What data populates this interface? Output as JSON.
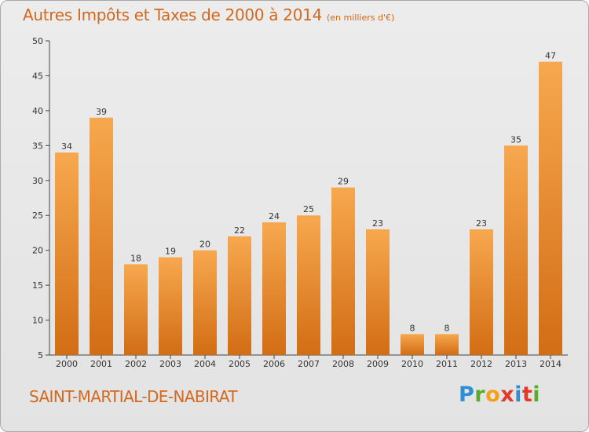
{
  "header": {
    "title": "Autres Impôts et Taxes de 2000 à 2014",
    "subtitle": "(en milliers d'€)"
  },
  "footer": {
    "commune": "SAINT-MARTIAL-DE-NABIRAT",
    "logo_text": "Proxiti"
  },
  "colors": {
    "bar_light": "#f7a84f",
    "bar_dark": "#d26d14",
    "title": "#d2691e"
  },
  "chart_data": {
    "type": "bar",
    "title": "Autres Impôts et Taxes de 2000 à 2014",
    "subtitle": "(en milliers d'€)",
    "xlabel": "",
    "ylabel": "",
    "categories": [
      "2000",
      "2001",
      "2002",
      "2003",
      "2004",
      "2005",
      "2006",
      "2007",
      "2008",
      "2009",
      "2010",
      "2011",
      "2012",
      "2013",
      "2014"
    ],
    "values": [
      34,
      39,
      18,
      19,
      20,
      22,
      24,
      25,
      29,
      23,
      8,
      8,
      23,
      35,
      47
    ],
    "ylim": [
      5,
      50
    ],
    "yticks": [
      5,
      10,
      15,
      20,
      25,
      30,
      35,
      40,
      45,
      50
    ],
    "grid": false,
    "data_labels": true
  }
}
